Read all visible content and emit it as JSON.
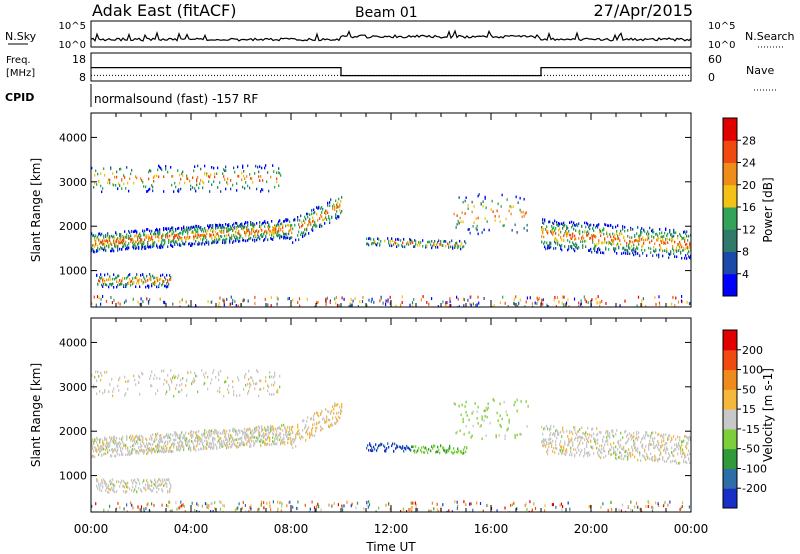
{
  "header": {
    "station": "Adak East (fitACF)",
    "beam": "Beam 01",
    "date": "27/Apr/2015"
  },
  "chart_data": [
    {
      "type": "line",
      "name": "nsky-panel",
      "left_label": "N.Sky",
      "right_label": "N.Search",
      "left_ticks": [
        "10^5",
        "10^0"
      ],
      "right_ticks": [
        "10^5",
        "10^0"
      ],
      "series": [
        {
          "name": "N.Sky",
          "style": "solid"
        },
        {
          "name": "N.Search",
          "style": "dotted"
        }
      ]
    },
    {
      "type": "line",
      "name": "freq-panel",
      "left_label_1": "Freq.",
      "left_label_2": "[MHz]",
      "right_label": "Nave",
      "left_ticks": [
        18,
        8
      ],
      "right_ticks": [
        60,
        0
      ],
      "freq_steps": [
        {
          "x0": 0,
          "x1": 10,
          "value": 14.7
        },
        {
          "x0": 10,
          "x1": 18,
          "value": 10.7
        },
        {
          "x0": 18,
          "x1": 24,
          "value": 14.7
        }
      ],
      "nave_level": 12
    },
    {
      "type": "text",
      "name": "cpid-panel",
      "label": "CPID",
      "program": "normalsound (fast) -157 RF"
    },
    {
      "type": "heatmap",
      "name": "power-panel",
      "ylabel": "Slant Range [km]",
      "ylim": [
        180,
        4550
      ],
      "yticks": [
        1000,
        2000,
        3000,
        4000
      ],
      "colorbar_label": "Power [dB]",
      "colorbar_ticks": [
        4,
        8,
        12,
        16,
        20,
        24,
        28
      ],
      "colors": [
        "#0000ff",
        "#1c4aa8",
        "#2f7a6a",
        "#33a35a",
        "#f2c316",
        "#f08c1a",
        "#f04a10",
        "#e00000"
      ]
    },
    {
      "type": "heatmap",
      "name": "velocity-panel",
      "ylabel": "Slant Range [km]",
      "ylim": [
        180,
        4550
      ],
      "yticks": [
        1000,
        2000,
        3000,
        4000
      ],
      "colorbar_label": "Velocity [m s-1]",
      "colorbar_ticks": [
        200,
        100,
        50,
        15,
        -15,
        -50,
        -100,
        -200
      ],
      "colors": [
        "#1a2fc8",
        "#2e6ea8",
        "#2e9a3a",
        "#7ccf3a",
        "#c8c8c8",
        "#f5b83a",
        "#ef8a1c",
        "#f04a10",
        "#e00000"
      ],
      "xlabel": "Time UT",
      "xlim": [
        0,
        24
      ],
      "xtick_labels": [
        "00:00",
        "04:00",
        "08:00",
        "12:00",
        "16:00",
        "20:00",
        "00:00"
      ]
    }
  ]
}
